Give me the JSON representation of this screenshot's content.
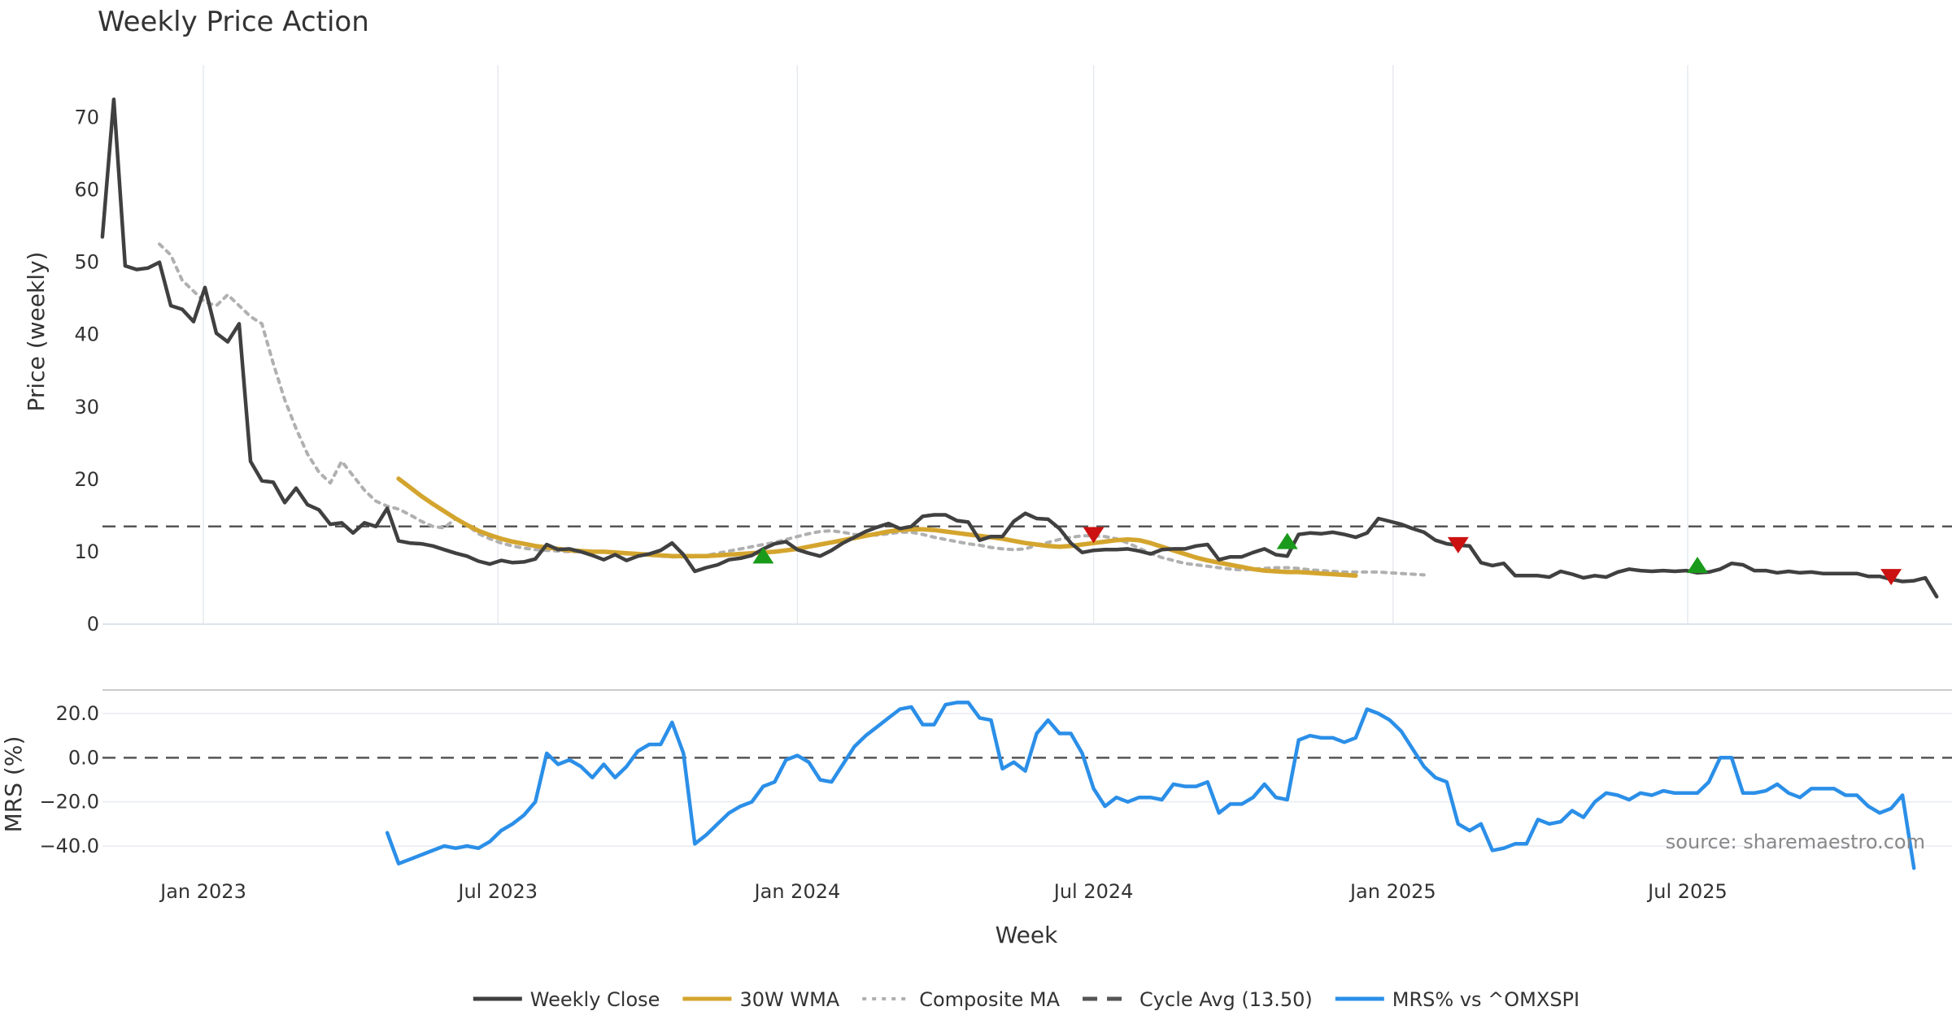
{
  "chart_data": {
    "type": "line",
    "title": "Weekly Price Action",
    "xlabel": "Week",
    "source": "source: sharemaestro.com",
    "x_tick_labels": [
      "Jan 2023",
      "Jul 2023",
      "Jan 2024",
      "Jul 2024",
      "Jan 2025",
      "Jul 2025"
    ],
    "grid": true,
    "legend_position": "bottom-center",
    "price_panel": {
      "ylabel": "Price (weekly)",
      "ylim": [
        0,
        75
      ],
      "y_ticks": [
        0,
        10,
        20,
        30,
        40,
        50,
        60,
        70
      ],
      "y_tick_labels": [
        "0",
        "10",
        "20",
        "30",
        "40",
        "50",
        "60",
        "70"
      ],
      "x_start": "2022-10-31",
      "interval_days": 7,
      "series": [
        {
          "name": "Weekly Close",
          "color": "#404040",
          "style": "solid",
          "values": [
            53.5,
            72.5,
            49.5,
            49,
            49.2,
            50,
            44,
            43.5,
            41.8,
            46.5,
            40.2,
            39,
            41.5,
            22.5,
            19.8,
            19.6,
            16.8,
            18.8,
            16.5,
            15.8,
            13.8,
            14,
            12.6,
            14,
            13.5,
            16,
            11.5,
            11.2,
            11.1,
            10.8,
            10.3,
            9.8,
            9.4,
            8.7,
            8.3,
            8.8,
            8.5,
            8.6,
            9,
            11,
            10.3,
            10.4,
            10,
            9.5,
            8.9,
            9.6,
            8.8,
            9.4,
            9.7,
            10.2,
            11.2,
            9.6,
            7.3,
            7.8,
            8.2,
            8.9,
            9.1,
            9.5,
            10.4,
            11.1,
            11.4,
            10.3,
            9.8,
            9.4,
            10.2,
            11.2,
            12,
            12.8,
            13.4,
            13.9,
            13.2,
            13.5,
            14.9,
            15.1,
            15.1,
            14.3,
            14.1,
            11.6,
            12.1,
            12.1,
            14.2,
            15.3,
            14.6,
            14.5,
            13.2,
            11.2,
            9.9,
            10.2,
            10.3,
            10.3,
            10.4,
            10.1,
            9.7,
            10.3,
            10.4,
            10.4,
            10.8,
            11,
            8.9,
            9.3,
            9.3,
            9.9,
            10.4,
            9.6,
            9.4,
            12.4,
            12.6,
            12.5,
            12.7,
            12.4,
            12,
            12.6,
            14.6,
            14.2,
            13.8,
            13.2,
            12.7,
            11.6,
            11.1,
            10.9,
            10.8,
            8.5,
            8.1,
            8.4,
            6.7,
            6.7,
            6.7,
            6.5,
            7.3,
            6.9,
            6.4,
            6.7,
            6.5,
            7.2,
            7.6,
            7.4,
            7.3,
            7.4,
            7.3,
            7.4,
            7.1,
            7.2,
            7.6,
            8.4,
            8.2,
            7.4,
            7.4,
            7.1,
            7.3,
            7.1,
            7.2,
            7,
            7,
            7,
            7,
            6.6,
            6.6,
            6.2,
            5.9,
            6,
            6.4,
            3.8
          ]
        },
        {
          "name": "30W WMA",
          "color": "#D4A52E",
          "style": "solid",
          "x_start": "2023-05-01",
          "values": [
            20.1,
            18.9,
            17.7,
            16.6,
            15.6,
            14.6,
            13.7,
            12.9,
            12.3,
            11.8,
            11.4,
            11.1,
            10.8,
            10.6,
            10.4,
            10.2,
            10.1,
            10,
            10,
            9.9,
            9.8,
            9.7,
            9.6,
            9.5,
            9.4,
            9.4,
            9.4,
            9.4,
            9.5,
            9.6,
            9.7,
            9.8,
            9.9,
            10,
            10.2,
            10.4,
            10.7,
            11,
            11.3,
            11.6,
            11.9,
            12.2,
            12.5,
            12.8,
            13,
            13.1,
            13.1,
            13,
            12.8,
            12.6,
            12.4,
            12.2,
            12,
            11.8,
            11.5,
            11.2,
            11,
            10.8,
            10.7,
            10.8,
            11,
            11.2,
            11.4,
            11.6,
            11.7,
            11.6,
            11.2,
            10.7,
            10.2,
            9.7,
            9.2,
            8.8,
            8.5,
            8.2,
            7.9,
            7.6,
            7.4,
            7.3,
            7.2,
            7.2,
            7.1,
            7,
            6.9,
            6.8,
            6.7
          ]
        },
        {
          "name": "Composite MA",
          "color": "#B0B0B0",
          "style": "dotted",
          "x_start": "2022-12-05",
          "values": [
            52.5,
            51,
            47.5,
            46,
            44.5,
            44,
            45.5,
            44,
            42.5,
            41.5,
            36,
            31,
            27,
            23.5,
            21,
            19.5,
            22.5,
            20.5,
            18.5,
            17,
            16.3,
            15.9,
            15.1,
            14.2,
            13.5,
            13.3,
            14.6,
            13.7,
            12.5,
            11.8,
            11.2,
            10.8,
            10.5,
            10.3,
            10.2,
            10.1,
            10,
            10,
            10,
            10,
            9.9,
            9.7,
            9.6,
            9.5,
            9.4,
            9.3,
            9.3,
            9.3,
            9.5,
            9.8,
            10.1,
            10.4,
            10.7,
            11,
            11.3,
            11.7,
            12.1,
            12.5,
            12.8,
            12.9,
            12.7,
            12.4,
            12.3,
            12.3,
            12.5,
            12.7,
            12.7,
            12.4,
            12,
            11.7,
            11.4,
            11.1,
            10.9,
            10.6,
            10.4,
            10.3,
            10.4,
            10.9,
            11.3,
            11.7,
            12,
            12.2,
            12.2,
            12.1,
            11.8,
            11.2,
            10.5,
            9.8,
            9.2,
            8.8,
            8.4,
            8.2,
            8,
            7.8,
            7.6,
            7.5,
            7.6,
            7.7,
            7.8,
            7.8,
            7.7,
            7.5,
            7.4,
            7.3,
            7.2,
            7.2,
            7.2,
            7.2,
            7.1,
            7,
            6.9,
            6.8
          ]
        },
        {
          "name": "Cycle Avg (13.50)",
          "color": "#555555",
          "style": "dashed",
          "value": 13.5
        }
      ],
      "markers": [
        {
          "type": "buy",
          "date": "2023-12-11",
          "value": 9.5,
          "color": "#1A9A1A"
        },
        {
          "type": "sell",
          "date": "2024-07-01",
          "value": 12.3,
          "color": "#CC1111"
        },
        {
          "type": "buy",
          "date": "2024-10-28",
          "value": 11.5,
          "color": "#1A9A1A"
        },
        {
          "type": "sell",
          "date": "2025-02-10",
          "value": 10.9,
          "color": "#CC1111"
        },
        {
          "type": "buy",
          "date": "2025-07-07",
          "value": 8.2,
          "color": "#1A9A1A"
        },
        {
          "type": "sell",
          "date": "2025-11-03",
          "value": 6.5,
          "color": "#CC1111"
        }
      ]
    },
    "mrs_panel": {
      "ylabel": "MRS (%)",
      "ylim": [
        -50,
        28
      ],
      "y_ticks": [
        20,
        0,
        -20,
        -40
      ],
      "y_tick_labels": [
        "20.0",
        "0.0",
        "−20.0",
        "−40.0"
      ],
      "zero_line": 0,
      "series": [
        {
          "name": "MRS% vs ^OMXSPI",
          "color": "#2B8FE8",
          "style": "solid",
          "x_start": "2023-04-24",
          "values": [
            -34,
            -48,
            -46,
            -44,
            -42,
            -40,
            -41,
            -40,
            -41,
            -38,
            -33,
            -30,
            -26,
            -20,
            2,
            -3,
            -1,
            -4,
            -9,
            -3,
            -9,
            -4,
            3,
            6,
            6,
            16,
            2,
            -39,
            -35,
            -30,
            -25,
            -22,
            -20,
            -13,
            -11,
            -1,
            1,
            -2,
            -10,
            -11,
            -3,
            5,
            10,
            14,
            18,
            22,
            23,
            15,
            15,
            24,
            25,
            25,
            18,
            17,
            -5,
            -2,
            -6,
            11,
            17,
            11,
            11,
            2,
            -14,
            -22,
            -18,
            -20,
            -18,
            -18,
            -19,
            -12,
            -13,
            -13,
            -11,
            -25,
            -21,
            -21,
            -18,
            -12,
            -18,
            -19,
            8,
            10,
            9,
            9,
            7,
            9,
            22,
            20,
            17,
            12,
            4,
            -4,
            -9,
            -11,
            -30,
            -33,
            -30,
            -42,
            -41,
            -39,
            -39,
            -28,
            -30,
            -29,
            -24,
            -27,
            -20,
            -16,
            -17,
            -19,
            -16,
            -17,
            -15,
            -16,
            -16,
            -16,
            -11,
            0,
            0,
            -16,
            -16,
            -15,
            -12,
            -16,
            -18,
            -14,
            -14,
            -14,
            -17,
            -17,
            -22,
            -25,
            -23,
            -17,
            -50
          ]
        }
      ]
    },
    "legend": [
      {
        "label": "Weekly Close",
        "color": "#404040",
        "style": "solid"
      },
      {
        "label": "30W WMA",
        "color": "#D4A52E",
        "style": "solid"
      },
      {
        "label": "Composite MA",
        "color": "#B0B0B0",
        "style": "dotted"
      },
      {
        "label": "Cycle Avg (13.50)",
        "color": "#555555",
        "style": "dashed"
      },
      {
        "label": "MRS% vs ^OMXSPI",
        "color": "#2B8FE8",
        "style": "solid"
      }
    ]
  }
}
